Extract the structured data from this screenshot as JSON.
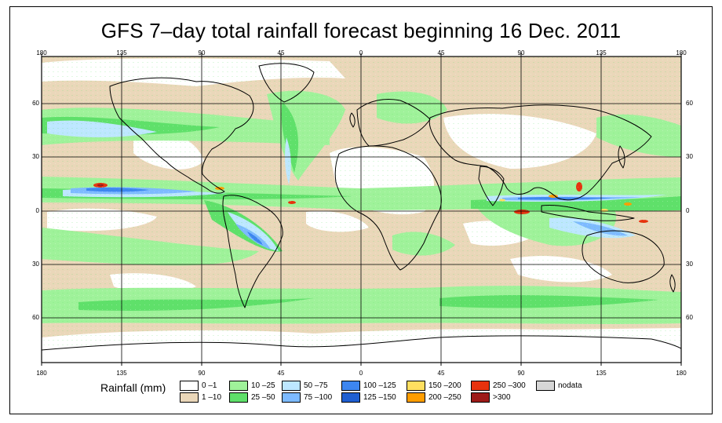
{
  "title": "GFS 7–day total rainfall forecast beginning 16 Dec. 2011",
  "axes": {
    "lon_labels": [
      "180",
      "135",
      "90",
      "45",
      "0",
      "45",
      "90",
      "135",
      "180"
    ],
    "lat_labels": [
      "60",
      "30",
      "0",
      "30",
      "60"
    ]
  },
  "legend": {
    "title": "Rainfall (mm)",
    "items": [
      {
        "label": "0 –1",
        "color": "#ffffff"
      },
      {
        "label": "1 –10",
        "color": "#ead7b9"
      },
      {
        "label": "10 –25",
        "color": "#9ff29a"
      },
      {
        "label": "25 –50",
        "color": "#5fe06a"
      },
      {
        "label": "50 –75",
        "color": "#bde7ff"
      },
      {
        "label": "75 –100",
        "color": "#7dbaff"
      },
      {
        "label": "100 –125",
        "color": "#3d86f0"
      },
      {
        "label": "125 –150",
        "color": "#1f5fd1"
      },
      {
        "label": "150 –200",
        "color": "#ffdf60"
      },
      {
        "label": "200 –250",
        "color": "#ff9d00"
      },
      {
        "label": "250 –300",
        "color": "#e7320e"
      },
      {
        "label": ">300",
        "color": "#9d1a18"
      },
      {
        "label": "nodata",
        "color": "#d6d6d6"
      }
    ]
  }
}
